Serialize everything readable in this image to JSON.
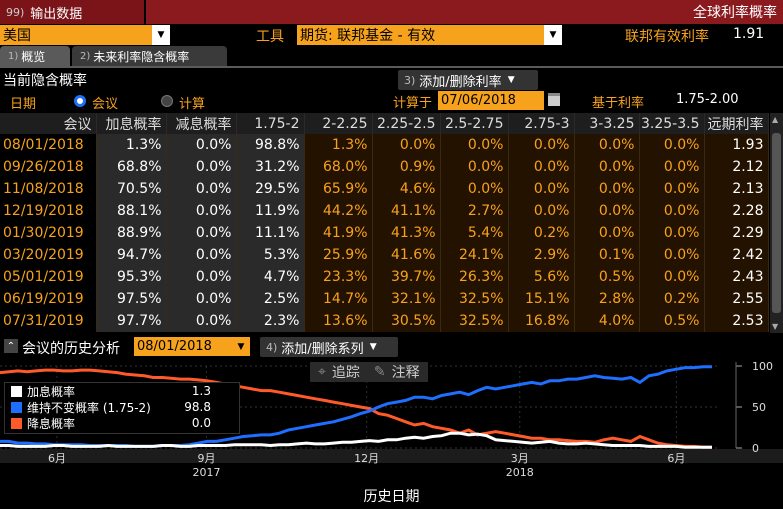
{
  "titlebar": {
    "menu_num": "99)",
    "menu_label": "输出数据",
    "title": "全球利率概率"
  },
  "toolbar": {
    "country": "美国",
    "tool_label": "工具",
    "instrument": "期货: 联邦基金 - 有效",
    "effective_rate_label": "联邦有效利率",
    "effective_rate_value": "1.91"
  },
  "tabs": [
    {
      "num": "1)",
      "label": "概览"
    },
    {
      "num": "2)",
      "label": "未来利率隐含概率"
    }
  ],
  "section": {
    "title": "当前隐含概率",
    "add_remove_num": "3)",
    "add_remove_label": "添加/删除利率",
    "date_label": "日期",
    "radio_meeting": "会议",
    "radio_calc": "计算",
    "calc_on_label": "计算于",
    "calc_date": "07/06/2018",
    "base_rate_label": "基于利率",
    "base_rate_value": "1.75-2.00"
  },
  "table": {
    "headers": [
      "会议",
      "加息概率",
      "减息概率",
      "1.75-2",
      "2-2.25",
      "2.25-2.5",
      "2.5-2.75",
      "2.75-3",
      "3-3.25",
      "3.25-3.5",
      "远期利率"
    ],
    "rows": [
      [
        "08/01/2018",
        "1.3%",
        "0.0%",
        "98.8%",
        "1.3%",
        "0.0%",
        "0.0%",
        "0.0%",
        "0.0%",
        "0.0%",
        "1.93"
      ],
      [
        "09/26/2018",
        "68.8%",
        "0.0%",
        "31.2%",
        "68.0%",
        "0.9%",
        "0.0%",
        "0.0%",
        "0.0%",
        "0.0%",
        "2.12"
      ],
      [
        "11/08/2018",
        "70.5%",
        "0.0%",
        "29.5%",
        "65.9%",
        "4.6%",
        "0.0%",
        "0.0%",
        "0.0%",
        "0.0%",
        "2.13"
      ],
      [
        "12/19/2018",
        "88.1%",
        "0.0%",
        "11.9%",
        "44.2%",
        "41.1%",
        "2.7%",
        "0.0%",
        "0.0%",
        "0.0%",
        "2.28"
      ],
      [
        "01/30/2019",
        "88.9%",
        "0.0%",
        "11.1%",
        "41.9%",
        "41.3%",
        "5.4%",
        "0.2%",
        "0.0%",
        "0.0%",
        "2.29"
      ],
      [
        "03/20/2019",
        "94.7%",
        "0.0%",
        "5.3%",
        "25.9%",
        "41.6%",
        "24.1%",
        "2.9%",
        "0.1%",
        "0.0%",
        "2.42"
      ],
      [
        "05/01/2019",
        "95.3%",
        "0.0%",
        "4.7%",
        "23.3%",
        "39.7%",
        "26.3%",
        "5.6%",
        "0.5%",
        "0.0%",
        "2.43"
      ],
      [
        "06/19/2019",
        "97.5%",
        "0.0%",
        "2.5%",
        "14.7%",
        "32.1%",
        "32.5%",
        "15.1%",
        "2.8%",
        "0.2%",
        "2.55"
      ],
      [
        "07/31/2019",
        "97.7%",
        "0.0%",
        "2.3%",
        "13.6%",
        "30.5%",
        "32.5%",
        "16.8%",
        "4.0%",
        "0.5%",
        "2.53"
      ]
    ]
  },
  "history": {
    "title": "会议的历史分析",
    "date": "08/01/2018",
    "add_series_num": "4)",
    "add_series_label": "添加/删除系列",
    "track_label": "追踪",
    "annotate_label": "注释",
    "xaxis_title": "历史日期"
  },
  "chart_data": {
    "type": "line",
    "title": "",
    "xlabel": "历史日期",
    "ylabel": "",
    "ylim": [
      0,
      100
    ],
    "yticks": [
      0,
      50,
      100
    ],
    "xticks": [
      {
        "label": "6月",
        "year": ""
      },
      {
        "label": "9月",
        "year": "2017"
      },
      {
        "label": "12月",
        "year": ""
      },
      {
        "label": "3月",
        "year": "2018"
      },
      {
        "label": "6月",
        "year": ""
      }
    ],
    "legend": [
      {
        "name": "加息概率",
        "value": "1.3",
        "color": "#ffffff"
      },
      {
        "name": "维持不变概率 (1.75-2)",
        "value": "98.8",
        "color": "#1f6fff"
      },
      {
        "name": "降息概率",
        "value": "0.0",
        "color": "#ff5a2a"
      }
    ],
    "x": [
      0,
      5,
      10,
      15,
      20,
      25,
      30,
      35,
      40,
      45,
      50,
      55,
      60,
      65,
      70,
      75,
      80,
      85,
      90,
      95,
      100,
      105,
      110,
      115,
      120,
      125,
      130,
      135,
      140,
      145,
      150,
      155,
      160,
      165,
      170,
      175,
      180,
      185,
      190,
      195,
      200,
      205,
      210,
      215,
      220,
      225,
      230,
      235,
      240,
      245,
      250,
      255,
      260,
      265,
      270,
      275,
      280,
      285,
      290,
      295,
      300,
      305,
      310,
      315,
      320,
      325,
      330,
      335,
      340,
      345,
      350,
      355,
      360,
      365,
      370,
      375,
      380,
      385,
      390,
      395
    ],
    "series": [
      {
        "name": "加息概率",
        "values": [
          3,
          3,
          2,
          2,
          2,
          2,
          3,
          3,
          2,
          2,
          2,
          2,
          3,
          2,
          2,
          2,
          2,
          2,
          3,
          3,
          2,
          2,
          3,
          3,
          3,
          3,
          4,
          4,
          4,
          4,
          3,
          4,
          4,
          5,
          6,
          5,
          5,
          6,
          7,
          7,
          8,
          9,
          8,
          10,
          10,
          12,
          13,
          12,
          14,
          15,
          18,
          18,
          16,
          17,
          15,
          10,
          9,
          8,
          7,
          6,
          7,
          8,
          6,
          5,
          5,
          6,
          5,
          4,
          3,
          3,
          3,
          3,
          2,
          2,
          2,
          2,
          1,
          1,
          1,
          1
        ]
      },
      {
        "name": "维持不变概率 (1.75-2)",
        "values": [
          8,
          8,
          6,
          6,
          5,
          5,
          4,
          4,
          4,
          4,
          3,
          3,
          3,
          3,
          3,
          2,
          2,
          2,
          3,
          3,
          3,
          4,
          6,
          8,
          8,
          10,
          12,
          14,
          15,
          16,
          16,
          18,
          22,
          24,
          26,
          28,
          30,
          32,
          35,
          38,
          42,
          45,
          50,
          54,
          56,
          58,
          62,
          62,
          60,
          64,
          66,
          68,
          65,
          70,
          74,
          72,
          74,
          76,
          78,
          80,
          78,
          82,
          82,
          84,
          84,
          86,
          88,
          86,
          85,
          84,
          86,
          80,
          88,
          90,
          94,
          96,
          98,
          98,
          99,
          99
        ]
      },
      {
        "name": "降息概率",
        "values": [
          92,
          93,
          94,
          93,
          94,
          95,
          95,
          94,
          94,
          95,
          95,
          94,
          93,
          92,
          90,
          89,
          88,
          86,
          86,
          85,
          84,
          84,
          83,
          82,
          80,
          78,
          76,
          74,
          72,
          70,
          70,
          68,
          66,
          64,
          62,
          60,
          58,
          56,
          54,
          52,
          50,
          48,
          42,
          40,
          36,
          32,
          28,
          30,
          26,
          24,
          22,
          18,
          22,
          16,
          18,
          20,
          18,
          16,
          14,
          12,
          12,
          10,
          10,
          9,
          8,
          8,
          7,
          10,
          12,
          10,
          8,
          14,
          10,
          6,
          4,
          3,
          2,
          2,
          1,
          1
        ]
      }
    ]
  }
}
